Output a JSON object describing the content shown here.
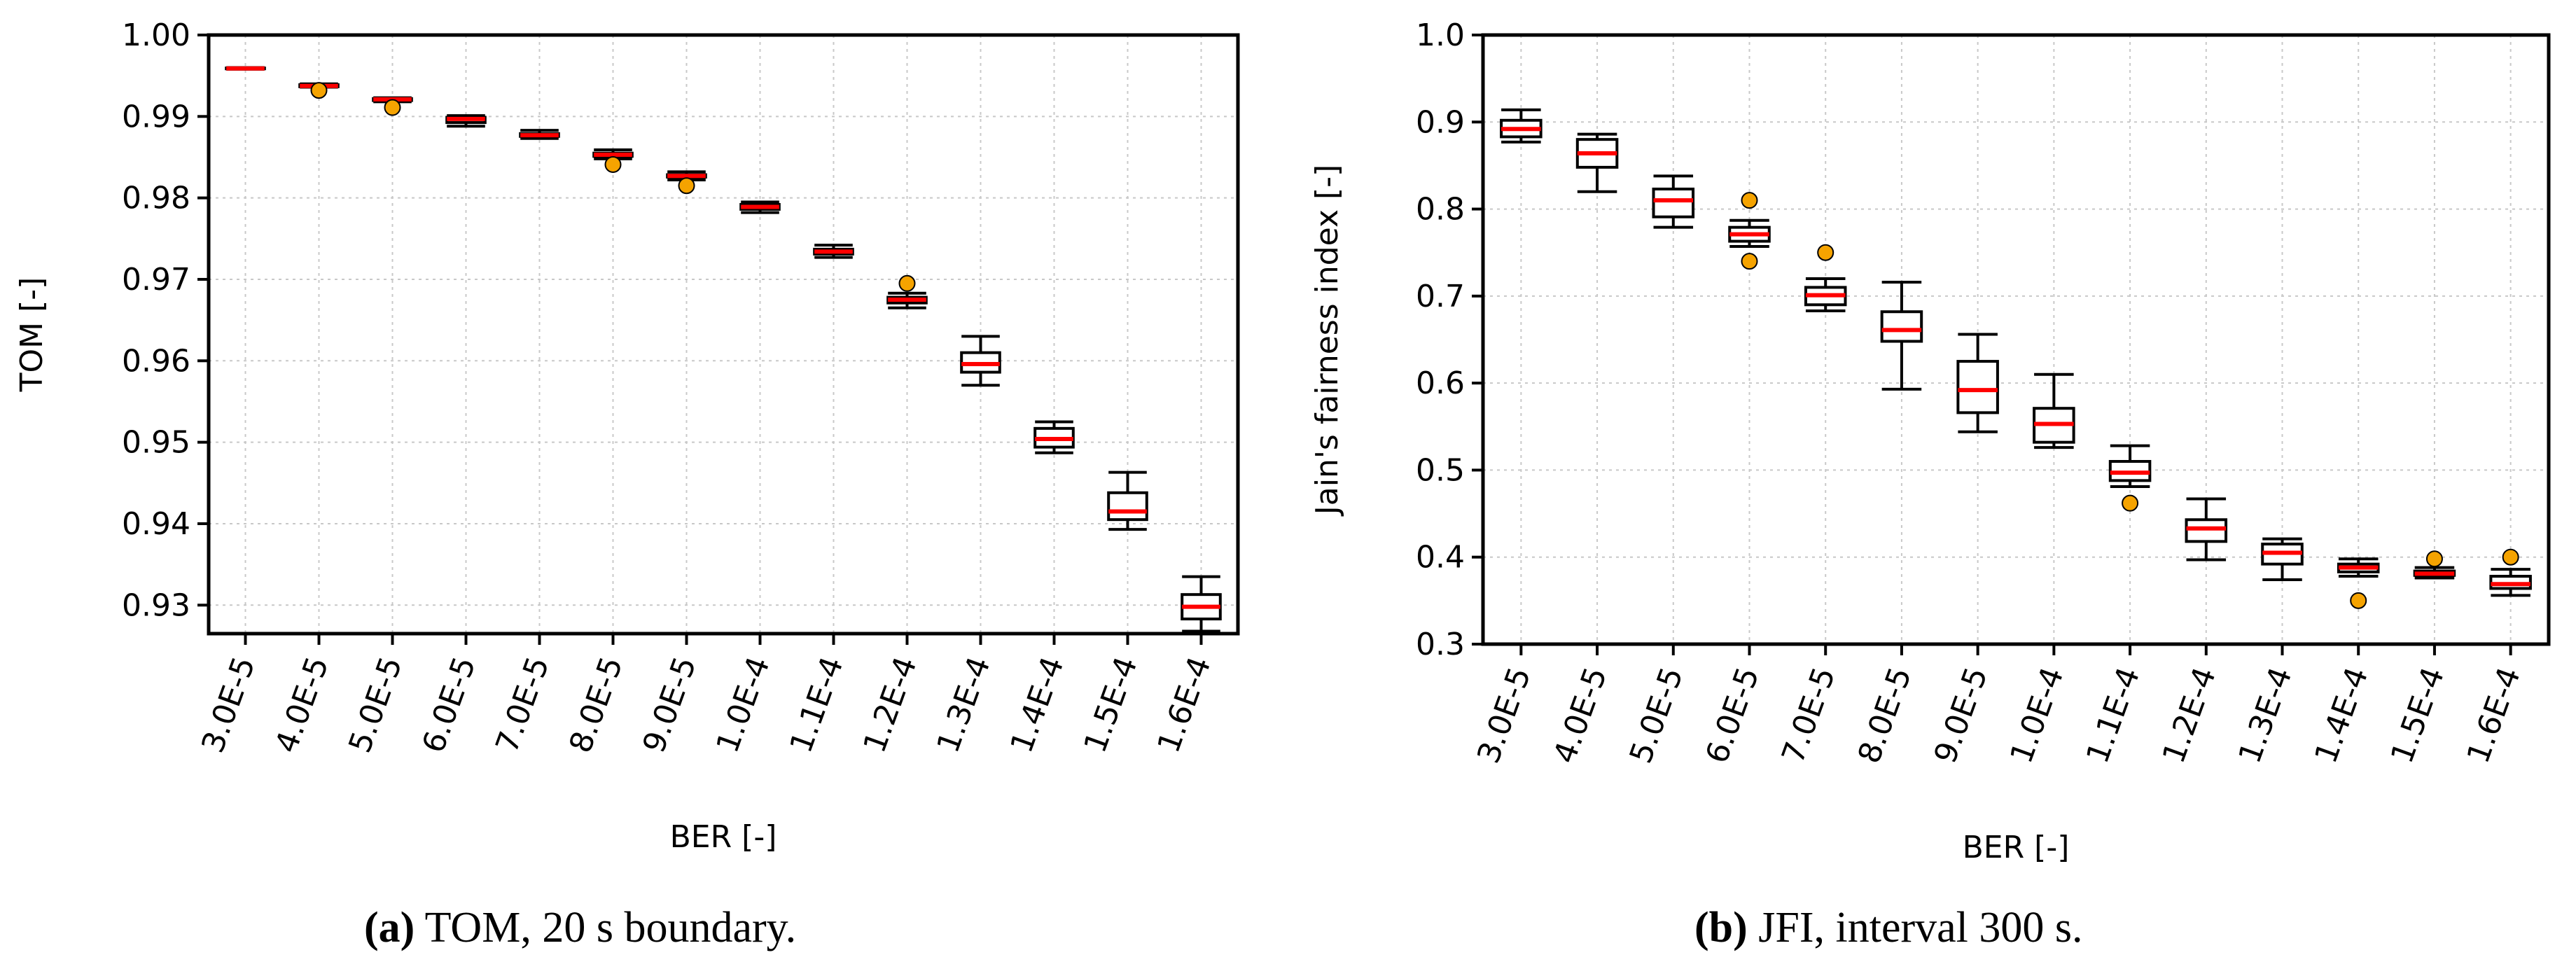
{
  "chart_data": [
    {
      "id": "a",
      "type": "box",
      "xlabel": "BER [-]",
      "ylabel": "TOM [-]",
      "ylim": [
        0.9265,
        1.0
      ],
      "yticks": [
        0.93,
        0.94,
        0.95,
        0.96,
        0.97,
        0.98,
        0.99,
        1.0
      ],
      "ytick_labels": [
        "0.93",
        "0.94",
        "0.95",
        "0.96",
        "0.97",
        "0.98",
        "0.99",
        "1.00"
      ],
      "grid": true,
      "categories": [
        "3.0E-5",
        "4.0E-5",
        "5.0E-5",
        "6.0E-5",
        "7.0E-5",
        "8.0E-5",
        "9.0E-5",
        "1.0E-4",
        "1.1E-4",
        "1.2E-4",
        "1.3E-4",
        "1.4E-4",
        "1.5E-4",
        "1.6E-4"
      ],
      "boxes": [
        {
          "min": 0.9958,
          "q1": 0.99585,
          "median": 0.9959,
          "q3": 0.99595,
          "max": 0.996,
          "outliers": []
        },
        {
          "min": 0.9936,
          "q1": 0.99365,
          "median": 0.99375,
          "q3": 0.9939,
          "max": 0.994,
          "outliers": [
            0.9932
          ]
        },
        {
          "min": 0.9918,
          "q1": 0.99195,
          "median": 0.9921,
          "q3": 0.9922,
          "max": 0.9923,
          "outliers": [
            0.9911
          ]
        },
        {
          "min": 0.9888,
          "q1": 0.98925,
          "median": 0.9897,
          "q3": 0.9899,
          "max": 0.9901,
          "outliers": []
        },
        {
          "min": 0.9873,
          "q1": 0.98755,
          "median": 0.9877,
          "q3": 0.9879,
          "max": 0.9883,
          "outliers": []
        },
        {
          "min": 0.9848,
          "q1": 0.9851,
          "median": 0.9853,
          "q3": 0.9855,
          "max": 0.9859,
          "outliers": [
            0.9841
          ]
        },
        {
          "min": 0.9822,
          "q1": 0.98255,
          "median": 0.9827,
          "q3": 0.98285,
          "max": 0.9832,
          "outliers": [
            0.9815
          ]
        },
        {
          "min": 0.9782,
          "q1": 0.9786,
          "median": 0.9789,
          "q3": 0.9792,
          "max": 0.9795,
          "outliers": []
        },
        {
          "min": 0.9727,
          "q1": 0.9731,
          "median": 0.9734,
          "q3": 0.9737,
          "max": 0.9742,
          "outliers": []
        },
        {
          "min": 0.9665,
          "q1": 0.9671,
          "median": 0.9675,
          "q3": 0.9678,
          "max": 0.9683,
          "outliers": [
            0.9695
          ]
        },
        {
          "min": 0.957,
          "q1": 0.9586,
          "median": 0.9596,
          "q3": 0.961,
          "max": 0.963,
          "outliers": []
        },
        {
          "min": 0.9487,
          "q1": 0.9494,
          "median": 0.9504,
          "q3": 0.9517,
          "max": 0.9525,
          "outliers": []
        },
        {
          "min": 0.9393,
          "q1": 0.9405,
          "median": 0.9415,
          "q3": 0.9438,
          "max": 0.9463,
          "outliers": []
        },
        {
          "min": 0.9268,
          "q1": 0.9283,
          "median": 0.9298,
          "q3": 0.9313,
          "max": 0.9335,
          "outliers": []
        }
      ]
    },
    {
      "id": "b",
      "type": "box",
      "xlabel": "BER [-]",
      "ylabel": "Jain's fairness index [-]",
      "ylim": [
        0.3,
        1.0
      ],
      "yticks": [
        0.3,
        0.4,
        0.5,
        0.6,
        0.7,
        0.8,
        0.9,
        1.0
      ],
      "ytick_labels": [
        "0.3",
        "0.4",
        "0.5",
        "0.6",
        "0.7",
        "0.8",
        "0.9",
        "1.0"
      ],
      "grid": true,
      "categories": [
        "3.0E-5",
        "4.0E-5",
        "5.0E-5",
        "6.0E-5",
        "7.0E-5",
        "8.0E-5",
        "9.0E-5",
        "1.0E-4",
        "1.1E-4",
        "1.2E-4",
        "1.3E-4",
        "1.4E-4",
        "1.5E-4",
        "1.6E-4"
      ],
      "boxes": [
        {
          "min": 0.877,
          "q1": 0.883,
          "median": 0.892,
          "q3": 0.902,
          "max": 0.914,
          "outliers": []
        },
        {
          "min": 0.82,
          "q1": 0.848,
          "median": 0.864,
          "q3": 0.88,
          "max": 0.886,
          "outliers": []
        },
        {
          "min": 0.779,
          "q1": 0.791,
          "median": 0.81,
          "q3": 0.823,
          "max": 0.838,
          "outliers": []
        },
        {
          "min": 0.757,
          "q1": 0.763,
          "median": 0.771,
          "q3": 0.779,
          "max": 0.787,
          "outliers": [
            0.81,
            0.74
          ]
        },
        {
          "min": 0.683,
          "q1": 0.69,
          "median": 0.701,
          "q3": 0.71,
          "max": 0.72,
          "outliers": [
            0.75
          ]
        },
        {
          "min": 0.593,
          "q1": 0.648,
          "median": 0.661,
          "q3": 0.682,
          "max": 0.716,
          "outliers": []
        },
        {
          "min": 0.544,
          "q1": 0.566,
          "median": 0.592,
          "q3": 0.625,
          "max": 0.656,
          "outliers": []
        },
        {
          "min": 0.526,
          "q1": 0.532,
          "median": 0.553,
          "q3": 0.571,
          "max": 0.61,
          "outliers": []
        },
        {
          "min": 0.481,
          "q1": 0.488,
          "median": 0.497,
          "q3": 0.51,
          "max": 0.528,
          "outliers": [
            0.462
          ]
        },
        {
          "min": 0.397,
          "q1": 0.418,
          "median": 0.433,
          "q3": 0.443,
          "max": 0.467,
          "outliers": []
        },
        {
          "min": 0.374,
          "q1": 0.392,
          "median": 0.405,
          "q3": 0.415,
          "max": 0.421,
          "outliers": []
        },
        {
          "min": 0.378,
          "q1": 0.383,
          "median": 0.388,
          "q3": 0.392,
          "max": 0.398,
          "outliers": [
            0.35
          ]
        },
        {
          "min": 0.376,
          "q1": 0.379,
          "median": 0.381,
          "q3": 0.384,
          "max": 0.388,
          "outliers": [
            0.398
          ]
        },
        {
          "min": 0.356,
          "q1": 0.364,
          "median": 0.369,
          "q3": 0.378,
          "max": 0.386,
          "outliers": [
            0.4
          ]
        }
      ]
    }
  ],
  "captions": [
    {
      "letter": "(a)",
      "text": " TOM, 20 s boundary."
    },
    {
      "letter": "(b)",
      "text": " JFI, interval 300 s."
    }
  ],
  "colors": {
    "median": "#ff0000",
    "outlier_fill": "#f5a300",
    "box_stroke": "#000000",
    "grid": "#c8c8c8"
  }
}
